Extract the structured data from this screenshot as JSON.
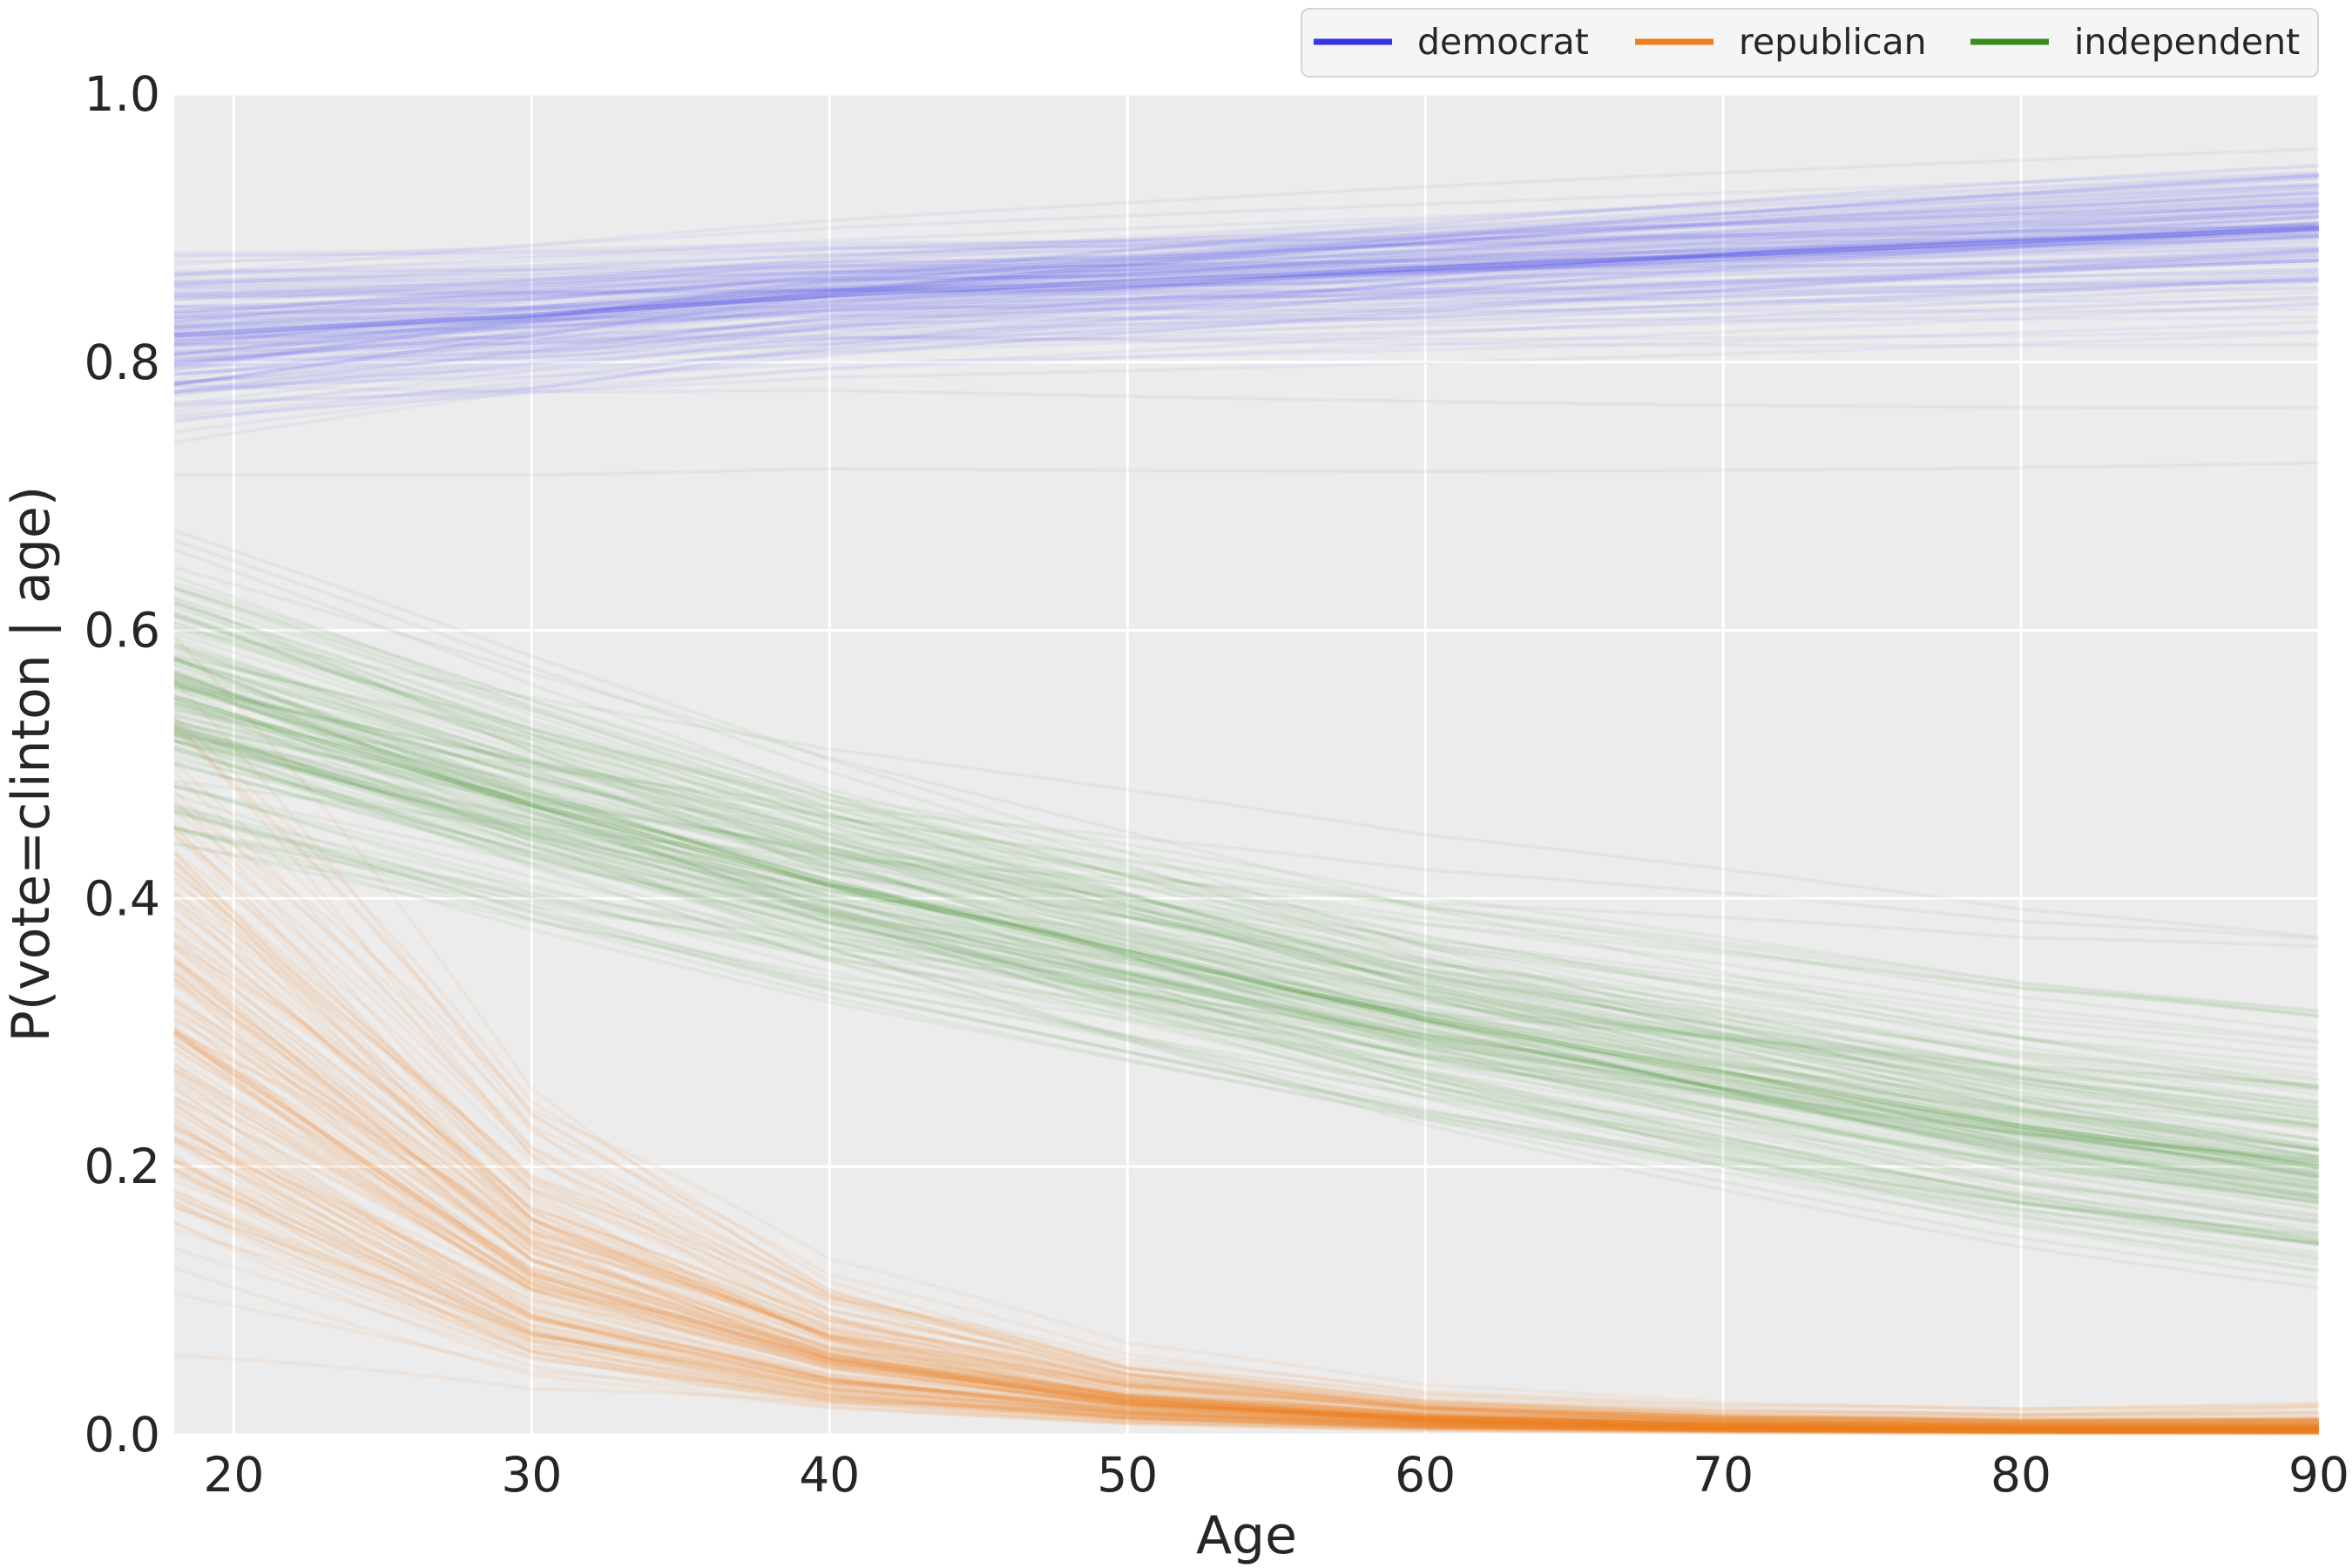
{
  "chart_data": {
    "type": "line",
    "xlabel": "Age",
    "ylabel": "P(vote=clinton | age)",
    "xlim": [
      18,
      90
    ],
    "ylim": [
      0.0,
      1.0
    ],
    "x_ticks": [
      20,
      30,
      40,
      50,
      60,
      70,
      80,
      90
    ],
    "y_ticks": [
      0.0,
      0.2,
      0.4,
      0.6,
      0.8,
      1.0
    ],
    "y_tick_labels": [
      "0.0",
      "0.2",
      "0.4",
      "0.6",
      "0.8",
      "1.0"
    ],
    "x_tick_labels": [
      "20",
      "30",
      "40",
      "50",
      "60",
      "70",
      "80",
      "90"
    ],
    "grid": true,
    "legend_position": "top-right, above plot",
    "n_draws_per_series": 150,
    "series": [
      {
        "name": "democrat",
        "color": "#3535e8",
        "line_alpha": 0.05,
        "mean": {
          "x": [
            18,
            30,
            40,
            50,
            60,
            70,
            80,
            90
          ],
          "y": [
            0.82,
            0.835,
            0.85,
            0.86,
            0.87,
            0.88,
            0.89,
            0.9
          ]
        },
        "spread_at_x18": 0.035,
        "spread_at_x90": 0.035,
        "pivot_age": 50
      },
      {
        "name": "republican",
        "color": "#f07d1f",
        "line_alpha": 0.07,
        "mean": {
          "x": [
            18,
            30,
            40,
            50,
            60,
            70,
            80,
            90
          ],
          "y": [
            0.3,
            0.12,
            0.055,
            0.025,
            0.012,
            0.007,
            0.005,
            0.005
          ]
        },
        "spread_at_x18": 0.1,
        "spread_at_x90": 0.004,
        "pivot_age": 30
      },
      {
        "name": "independent",
        "color": "#3a8e1e",
        "line_alpha": 0.06,
        "mean": {
          "x": [
            18,
            30,
            40,
            50,
            60,
            70,
            80,
            90
          ],
          "y": [
            0.55,
            0.47,
            0.41,
            0.36,
            0.31,
            0.27,
            0.23,
            0.2
          ]
        },
        "spread_at_x18": 0.045,
        "spread_at_x90": 0.05,
        "pivot_age": 45
      }
    ]
  },
  "legend": {
    "items": [
      {
        "label": "democrat",
        "color": "#3535e8"
      },
      {
        "label": "republican",
        "color": "#f07d1f"
      },
      {
        "label": "independent",
        "color": "#3a8e1e"
      }
    ]
  },
  "style": {
    "plot_background": "#ececec",
    "grid_color": "#ffffff",
    "text_color": "#262626",
    "legend_background": "#f5f5f5",
    "legend_border": "#d4d4d4"
  }
}
